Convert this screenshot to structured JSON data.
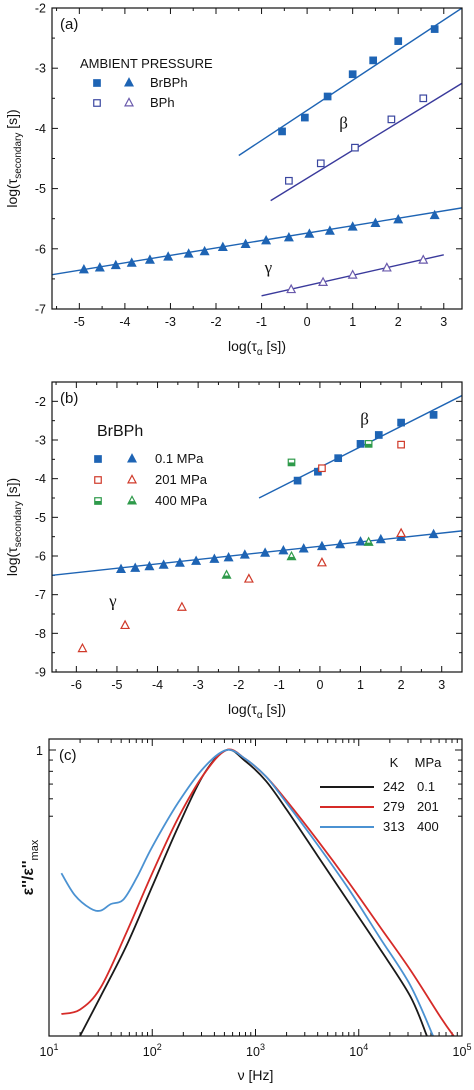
{
  "chart_data": [
    {
      "type": "scatter",
      "panel_label": "(a)",
      "xlabel": {
        "main": "log(τ",
        "sub": "α",
        "tail": " [s])"
      },
      "ylabel": {
        "main": "log(τ",
        "sub": "secondary",
        "tail": " [s])"
      },
      "xlim": [
        -5.6,
        3.4
      ],
      "ylim": [
        -7,
        -2
      ],
      "xticks": [
        -5,
        -4,
        -3,
        -2,
        -1,
        0,
        1,
        2,
        3
      ],
      "yticks": [
        -7,
        -6,
        -5,
        -4,
        -3,
        -2
      ],
      "legend_title": "AMBIENT PRESSURE",
      "legend": [
        {
          "label": "BrBPh",
          "symbols": [
            "filled-square",
            "filled-triangle"
          ]
        },
        {
          "label": "BPh",
          "symbols": [
            "open-square",
            "open-triangle"
          ]
        }
      ],
      "annotations": [
        {
          "text": "β",
          "x": 0.8,
          "y": -4.0
        },
        {
          "text": "γ",
          "x": -0.85,
          "y": -6.4
        }
      ],
      "series": [
        {
          "name": "BrBPh β",
          "marker": "filled-square",
          "color": "#1e64b4",
          "x": [
            -0.55,
            -0.05,
            0.45,
            1.0,
            1.45,
            2.0,
            2.8
          ],
          "y": [
            -4.05,
            -3.82,
            -3.47,
            -3.1,
            -2.87,
            -2.55,
            -2.35
          ],
          "fit": [
            [
              -1.5,
              -4.45
            ],
            [
              3.4,
              -2.0
            ]
          ]
        },
        {
          "name": "BPh β",
          "marker": "open-square",
          "color": "#3a46a0",
          "x": [
            -0.4,
            0.3,
            1.05,
            1.85,
            2.55
          ],
          "y": [
            -4.87,
            -4.58,
            -4.32,
            -3.85,
            -3.5
          ],
          "fit": [
            [
              -0.8,
              -5.2
            ],
            [
              3.4,
              -3.25
            ]
          ]
        },
        {
          "name": "BrBPh γ",
          "marker": "filled-triangle",
          "color": "#1e64b4",
          "x": [
            -4.9,
            -4.55,
            -4.2,
            -3.85,
            -3.45,
            -3.05,
            -2.6,
            -2.25,
            -1.85,
            -1.35,
            -0.9,
            -0.4,
            0.05,
            0.5,
            1.0,
            1.5,
            2.0,
            2.8
          ],
          "y": [
            -6.35,
            -6.32,
            -6.28,
            -6.24,
            -6.19,
            -6.14,
            -6.09,
            -6.05,
            -5.98,
            -5.93,
            -5.87,
            -5.82,
            -5.76,
            -5.71,
            -5.64,
            -5.58,
            -5.52,
            -5.45
          ],
          "fit": [
            [
              -5.6,
              -6.43
            ],
            [
              3.4,
              -5.32
            ]
          ]
        },
        {
          "name": "BPh γ",
          "marker": "open-triangle",
          "color": "#6a5aac",
          "x": [
            -0.35,
            0.35,
            1.0,
            1.75,
            2.55
          ],
          "y": [
            -6.68,
            -6.56,
            -6.44,
            -6.32,
            -6.19
          ],
          "fit": [
            [
              -1.0,
              -6.78
            ],
            [
              3.0,
              -6.1
            ]
          ]
        }
      ]
    },
    {
      "type": "scatter",
      "panel_label": "(b)",
      "xlabel": {
        "main": "log(τ",
        "sub": "α",
        "tail": " [s])"
      },
      "ylabel": {
        "main": "log(τ",
        "sub": "secondary",
        "tail": " [s])"
      },
      "xlim": [
        -6.6,
        3.5
      ],
      "ylim": [
        -9,
        -1.5
      ],
      "xticks": [
        -6,
        -5,
        -4,
        -3,
        -2,
        -1,
        0,
        1,
        2,
        3
      ],
      "yticks": [
        -9,
        -8,
        -7,
        -6,
        -5,
        -4,
        -3,
        -2
      ],
      "legend_title": "BrBPh",
      "legend": [
        {
          "label": "0.1 MPa",
          "symbols": [
            "filled-square",
            "filled-triangle"
          ]
        },
        {
          "label": "201 MPa",
          "symbols": [
            "open-square",
            "open-triangle"
          ]
        },
        {
          "label": "400 MPa",
          "symbols": [
            "halffill-square",
            "halffill-triangle"
          ]
        }
      ],
      "annotations": [
        {
          "text": "β",
          "x": 1.1,
          "y": -2.6
        },
        {
          "text": "γ",
          "x": -5.1,
          "y": -7.3
        }
      ],
      "series": [
        {
          "name": "0.1 MPa β",
          "marker": "filled-square",
          "color": "#1e64b4",
          "x": [
            -0.55,
            -0.05,
            0.45,
            1.0,
            1.45,
            2.0,
            2.8
          ],
          "y": [
            -4.05,
            -3.82,
            -3.47,
            -3.1,
            -2.87,
            -2.55,
            -2.35
          ],
          "fit": [
            [
              -1.5,
              -4.5
            ],
            [
              3.5,
              -1.85
            ]
          ]
        },
        {
          "name": "201 MPa β",
          "marker": "open-square",
          "color": "#d03a2a",
          "x": [
            0.05,
            2.0
          ],
          "y": [
            -3.73,
            -3.12
          ]
        },
        {
          "name": "400 MPa β",
          "marker": "halffill-square",
          "color": "#2e9a4a",
          "x": [
            -0.7,
            1.2
          ],
          "y": [
            -3.58,
            -3.1
          ]
        },
        {
          "name": "0.1 MPa γ",
          "marker": "filled-triangle",
          "color": "#1e64b4",
          "x": [
            -4.9,
            -4.55,
            -4.2,
            -3.85,
            -3.45,
            -3.05,
            -2.6,
            -2.25,
            -1.85,
            -1.35,
            -0.9,
            -0.4,
            0.05,
            0.5,
            1.0,
            1.5,
            2.0,
            2.8
          ],
          "y": [
            -6.35,
            -6.32,
            -6.28,
            -6.24,
            -6.19,
            -6.14,
            -6.09,
            -6.05,
            -5.98,
            -5.93,
            -5.87,
            -5.82,
            -5.76,
            -5.71,
            -5.64,
            -5.58,
            -5.52,
            -5.45
          ],
          "fit": [
            [
              -6.6,
              -6.5
            ],
            [
              3.5,
              -5.35
            ]
          ]
        },
        {
          "name": "201 MPa γ",
          "marker": "open-triangle",
          "color": "#d03a2a",
          "x": [
            -5.85,
            -4.8,
            -3.4,
            -1.75,
            0.05,
            2.0
          ],
          "y": [
            -8.4,
            -7.8,
            -7.33,
            -6.6,
            -6.18,
            -5.42
          ]
        },
        {
          "name": "400 MPa γ",
          "marker": "halffill-triangle",
          "color": "#2e9a4a",
          "x": [
            -2.3,
            -0.7,
            1.2
          ],
          "y": [
            -6.5,
            -6.02,
            -5.65
          ]
        }
      ]
    },
    {
      "type": "line",
      "panel_label": "(c)",
      "xlabel": "ν [Hz]",
      "ylabel": {
        "main": "ε''/ε''",
        "sub": "max"
      },
      "x_scale": "log",
      "xlim_log10": [
        1,
        5
      ],
      "ylim_log10": [
        -1.3,
        0.05
      ],
      "xticks": [
        {
          "base": "10",
          "exp": "1",
          "log": 1
        },
        {
          "base": "10",
          "exp": "2",
          "log": 2
        },
        {
          "base": "10",
          "exp": "3",
          "log": 3
        },
        {
          "base": "10",
          "exp": "4",
          "log": 4
        },
        {
          "base": "10",
          "exp": "5",
          "log": 5
        }
      ],
      "yticks": [
        {
          "label": "1",
          "log": 0
        }
      ],
      "legend_headers": [
        "K",
        "MPa"
      ],
      "series": [
        {
          "temperature": "242",
          "pressure": "0.1",
          "color": "#1a1a1a",
          "log_x": [
            1.3,
            1.5,
            1.75,
            2.0,
            2.25,
            2.5,
            2.72,
            2.9,
            3.1,
            3.3,
            3.6,
            3.9,
            4.2,
            4.5,
            4.66
          ],
          "log_y": [
            -1.3,
            -1.12,
            -0.89,
            -0.62,
            -0.35,
            -0.11,
            0.0,
            -0.05,
            -0.14,
            -0.27,
            -0.48,
            -0.69,
            -0.9,
            -1.12,
            -1.3
          ]
        },
        {
          "temperature": "279",
          "pressure": "201",
          "color": "#d62b28",
          "log_x": [
            1.12,
            1.3,
            1.5,
            1.75,
            2.0,
            2.25,
            2.5,
            2.72,
            2.9,
            3.1,
            3.3,
            3.6,
            3.9,
            4.2,
            4.5,
            4.8,
            4.92
          ],
          "log_y": [
            -1.2,
            -1.18,
            -1.08,
            -0.83,
            -0.56,
            -0.31,
            -0.11,
            0.0,
            -0.04,
            -0.12,
            -0.23,
            -0.41,
            -0.6,
            -0.8,
            -1.0,
            -1.22,
            -1.3
          ]
        },
        {
          "temperature": "313",
          "pressure": "400",
          "color": "#4b92d2",
          "log_x": [
            1.12,
            1.25,
            1.4,
            1.5,
            1.6,
            1.72,
            1.85,
            2.0,
            2.25,
            2.5,
            2.72,
            2.9,
            3.1,
            3.3,
            3.6,
            3.9,
            4.2,
            4.5,
            4.72
          ],
          "log_y": [
            -0.56,
            -0.66,
            -0.72,
            -0.73,
            -0.7,
            -0.68,
            -0.58,
            -0.44,
            -0.24,
            -0.08,
            0.0,
            -0.04,
            -0.12,
            -0.24,
            -0.43,
            -0.63,
            -0.85,
            -1.07,
            -1.3
          ]
        }
      ]
    }
  ]
}
